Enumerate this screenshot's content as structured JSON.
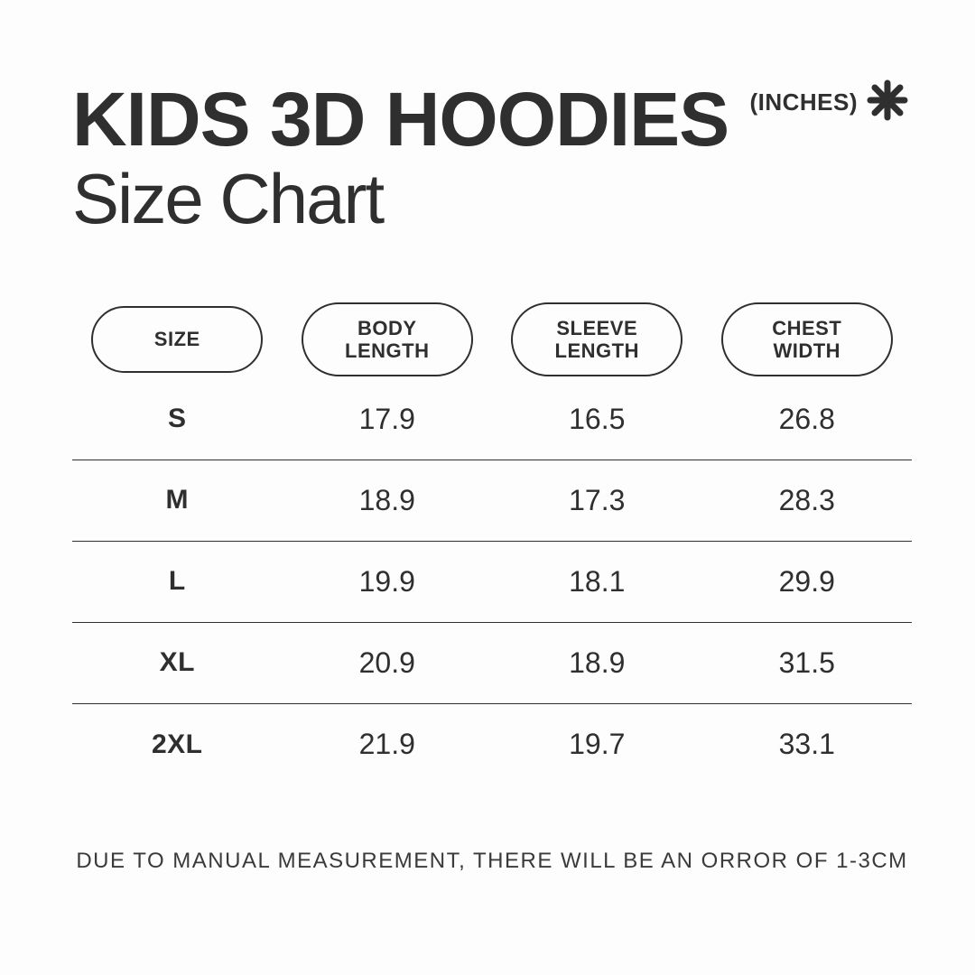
{
  "header": {
    "title_bold": "KIDS 3D HOODIES",
    "unit_label": "(INCHES)",
    "subtitle": "Size Chart"
  },
  "table": {
    "columns": [
      "SIZE",
      "BODY\nLENGTH",
      "SLEEVE\nLENGTH",
      "CHEST\nWIDTH"
    ],
    "rows": [
      {
        "size": "S",
        "body": "17.9",
        "sleeve": "16.5",
        "chest": "26.8"
      },
      {
        "size": "M",
        "body": "18.9",
        "sleeve": "17.3",
        "chest": "28.3"
      },
      {
        "size": "L",
        "body": "19.9",
        "sleeve": "18.1",
        "chest": "29.9"
      },
      {
        "size": "XL",
        "body": "20.9",
        "sleeve": "18.9",
        "chest": "31.5"
      },
      {
        "size": "2XL",
        "body": "21.9",
        "sleeve": "19.7",
        "chest": "33.1"
      }
    ]
  },
  "footnote": "DUE TO MANUAL MEASUREMENT, THERE WILL BE AN ORROR OF 1-3CM",
  "colors": {
    "text": "#2f2f2f",
    "background": "#fdfdfd",
    "border": "#2f2f2f"
  }
}
